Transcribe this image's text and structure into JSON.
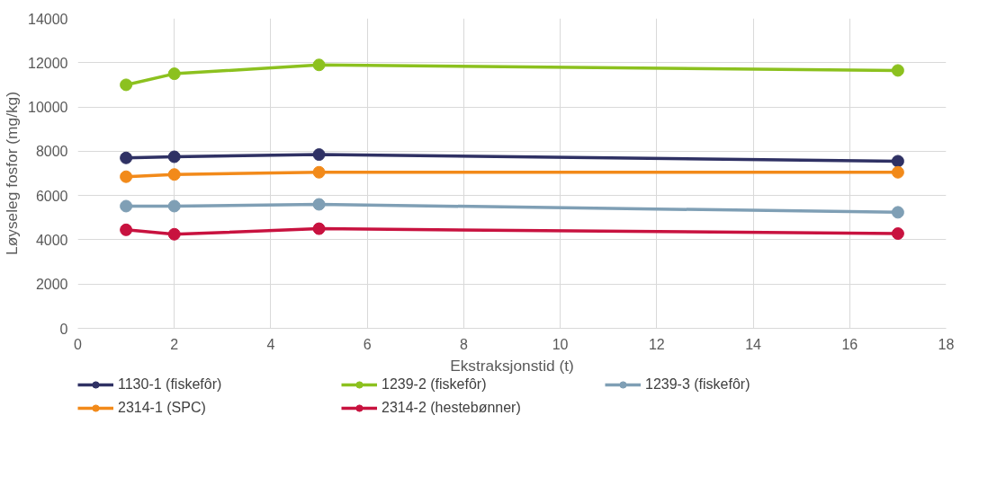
{
  "chart_data": {
    "type": "line",
    "xlabel": "Ekstraksjonstid (t)",
    "ylabel": "Løyseleg fosfor (mg/kg)",
    "x": [
      1,
      2,
      5,
      17
    ],
    "series": [
      {
        "name": "1130-1 (fiskefôr)",
        "color": "#2f3164",
        "values": [
          7700,
          7750,
          7850,
          7550
        ]
      },
      {
        "name": "1239-2 (fiskefôr)",
        "color": "#8cc11f",
        "values": [
          11000,
          11500,
          11900,
          11650
        ]
      },
      {
        "name": "1239-3 (fiskefôr)",
        "color": "#7f9fb5",
        "values": [
          5520,
          5520,
          5600,
          5240
        ]
      },
      {
        "name": "2314-1 (SPC)",
        "color": "#f28a1a",
        "values": [
          6850,
          6950,
          7050,
          7050
        ]
      },
      {
        "name": "2314-2 (hestebønner)",
        "color": "#c8123f",
        "values": [
          4450,
          4250,
          4500,
          4280
        ]
      }
    ],
    "xlim": [
      0,
      18
    ],
    "xticks": [
      0,
      2,
      4,
      6,
      8,
      10,
      12,
      14,
      16,
      18
    ],
    "ylim": [
      0,
      14000
    ],
    "yticks": [
      0,
      2000,
      4000,
      6000,
      8000,
      10000,
      12000,
      14000
    ],
    "grid": true,
    "legend": "bottom",
    "marker": "circle",
    "line_style": "solid"
  }
}
